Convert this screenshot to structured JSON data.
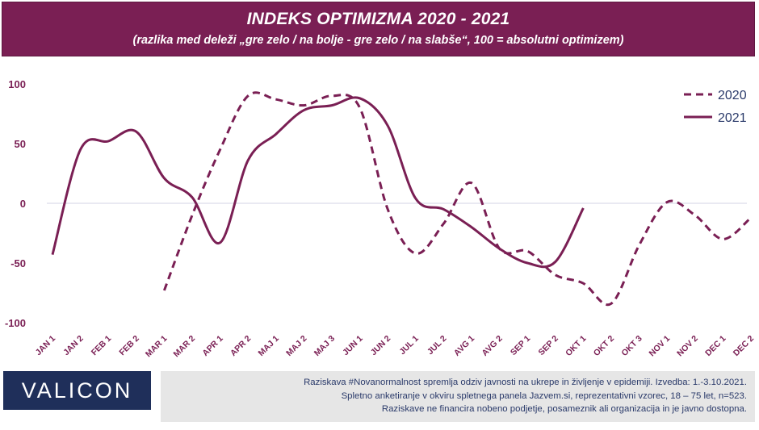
{
  "header": {
    "title": "INDEKS OPTIMIZMA 2020 - 2021",
    "subtitle": "(razlika med deleži „gre zelo / na bolje - gre zelo / na slabše“, 100 = absolutni optimizem)"
  },
  "colors": {
    "header_bg": "#7a1f54",
    "series": "#7a1f54",
    "footer_text": "#2a3a6a",
    "logo_bg": "#1f2f5a"
  },
  "chart_data": {
    "type": "line",
    "title": "INDEKS OPTIMIZMA 2020 - 2021",
    "categories": [
      "JAN 1",
      "JAN 2",
      "FEB 1",
      "FEB 2",
      "MAR 1",
      "MAR 2",
      "APR 1",
      "APR 2",
      "MAJ 1",
      "MAJ 2",
      "MAJ 3",
      "JUN 1",
      "JUN 2",
      "JUL 1",
      "JUL 2",
      "AVG 1",
      "AVG 2",
      "SEP 1",
      "SEP 2",
      "OKT 1",
      "OKT 2",
      "OKT 3",
      "NOV 1",
      "NOV 2",
      "DEC 1",
      "DEC 2"
    ],
    "ylim": [
      -100,
      100
    ],
    "yticks": [
      100,
      50,
      0,
      -50,
      -100
    ],
    "legend_position": "top-right",
    "grid": false,
    "series": [
      {
        "name": "2020",
        "style": "dashed",
        "values": [
          null,
          null,
          null,
          null,
          -73,
          -10,
          45,
          90,
          87,
          82,
          90,
          80,
          -5,
          -42,
          -17,
          17,
          -38,
          -40,
          -60,
          -67,
          -84,
          -35,
          1,
          -10,
          -30,
          -12
        ]
      },
      {
        "name": "2021",
        "style": "solid",
        "values": [
          -43,
          45,
          52,
          60,
          21,
          5,
          -33,
          36,
          58,
          78,
          82,
          88,
          65,
          4,
          -5,
          -20,
          -38,
          -50,
          -49,
          -4,
          null,
          null,
          null,
          null,
          null,
          null
        ]
      }
    ]
  },
  "logo": {
    "text": "VALICON"
  },
  "footer": {
    "line1": "Raziskava #Novanormalnost spremlja odziv javnosti na ukrepe in življenje v epidemiji. Izvedba: 1.-3.10.2021.",
    "line2": "Spletno anketiranje v okviru spletnega panela Jazvem.si, reprezentativni vzorec, 18 – 75 let, n=523.",
    "line3": "Raziskave ne financira nobeno podjetje, posameznik ali organizacija in je javno dostopna."
  }
}
